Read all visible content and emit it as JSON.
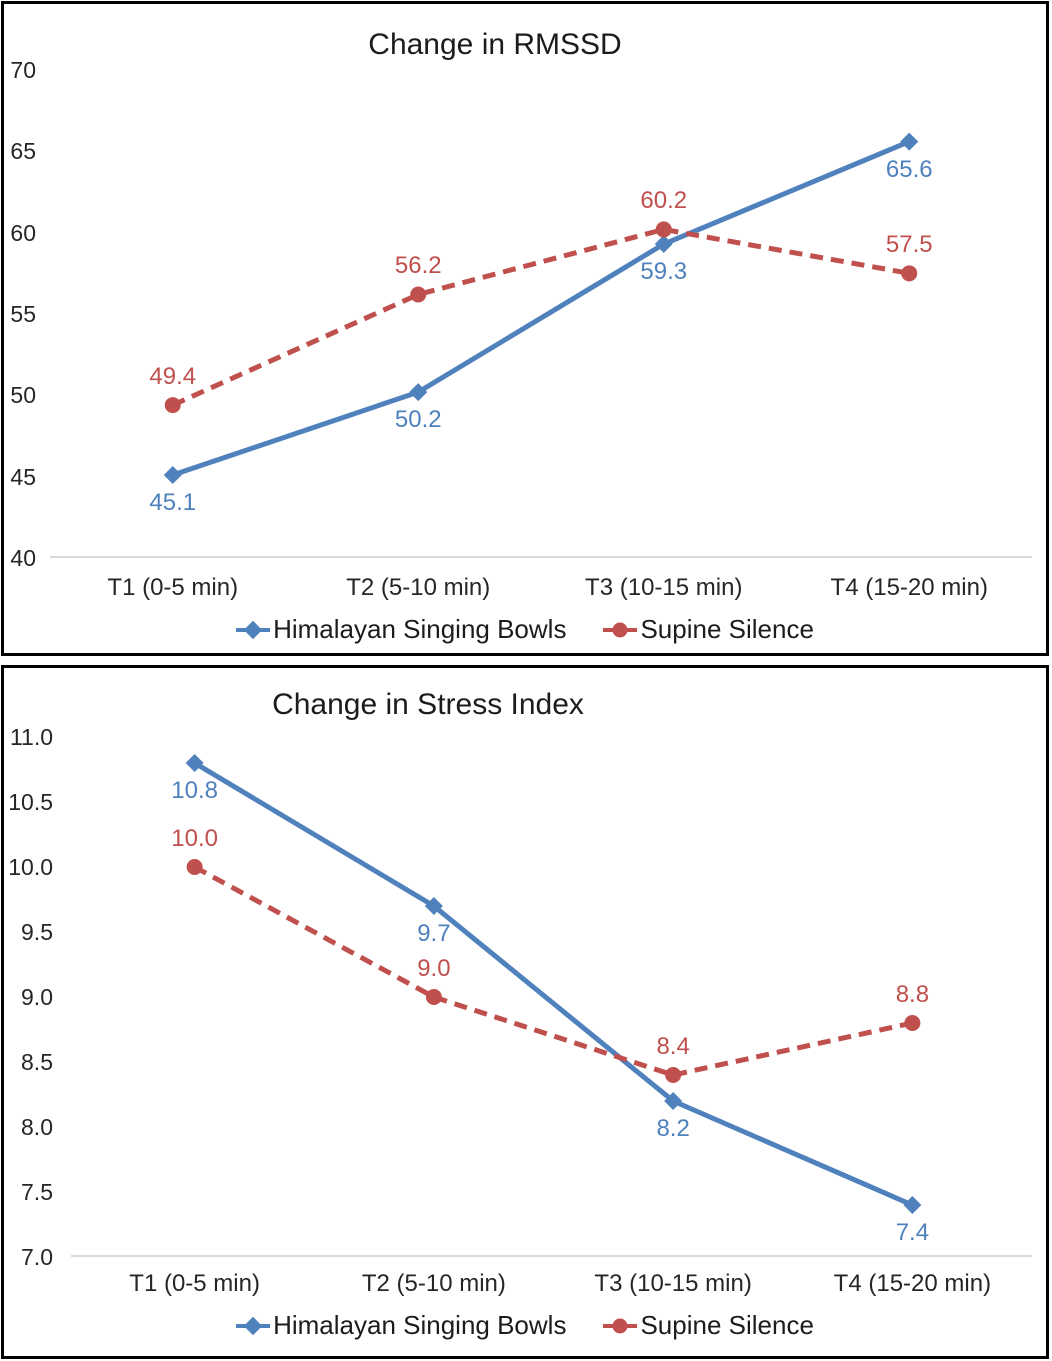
{
  "colors": {
    "series_blue": "#4F81BD",
    "series_red": "#C0504D",
    "axis_line": "#D9D9D9",
    "text": "#1F1F1F",
    "panel_border": "#000000",
    "background": "#FFFFFF"
  },
  "chart_data": [
    {
      "type": "line",
      "title": "Change in RMSSD",
      "categories": [
        "T1 (0-5 min)",
        "T2 (5-10 min)",
        "T3 (10-15 min)",
        "T4 (15-20 min)"
      ],
      "yticks": [
        "70",
        "65",
        "60",
        "55",
        "50",
        "45",
        "40"
      ],
      "ylim": [
        40,
        70
      ],
      "grid": false,
      "legend_position": "bottom",
      "series": [
        {
          "name": "Himalayan Singing Bowls",
          "values": [
            45.1,
            50.2,
            59.3,
            65.6
          ],
          "point_labels": [
            "45.1",
            "50.2",
            "59.3",
            "65.6"
          ],
          "color": "#4F81BD",
          "marker": "diamond",
          "line_style": "solid",
          "label_position": "below"
        },
        {
          "name": "Supine Silence",
          "values": [
            49.4,
            56.2,
            60.2,
            57.5
          ],
          "point_labels": [
            "49.4",
            "56.2",
            "60.2",
            "57.5"
          ],
          "color": "#C0504D",
          "marker": "circle",
          "line_style": "dashed",
          "label_position": "above"
        }
      ]
    },
    {
      "type": "line",
      "title": "Change in Stress Index",
      "categories": [
        "T1 (0-5 min)",
        "T2 (5-10 min)",
        "T3 (10-15 min)",
        "T4 (15-20 min)"
      ],
      "yticks": [
        "11.0",
        "10.5",
        "10.0",
        "9.5",
        "9.0",
        "8.5",
        "8.0",
        "7.5",
        "7.0"
      ],
      "ylim": [
        7.0,
        11.0
      ],
      "grid": false,
      "legend_position": "bottom",
      "series": [
        {
          "name": "Himalayan Singing Bowls",
          "values": [
            10.8,
            9.7,
            8.2,
            7.4
          ],
          "point_labels": [
            "10.8",
            "9.7",
            "8.2",
            "7.4"
          ],
          "color": "#4F81BD",
          "marker": "diamond",
          "line_style": "solid",
          "label_position": "below"
        },
        {
          "name": "Supine Silence",
          "values": [
            10.0,
            9.0,
            8.4,
            8.8
          ],
          "point_labels": [
            "10.0",
            "9.0",
            "8.4",
            "8.8"
          ],
          "color": "#C0504D",
          "marker": "circle",
          "line_style": "dashed",
          "label_position": "above"
        }
      ]
    }
  ]
}
